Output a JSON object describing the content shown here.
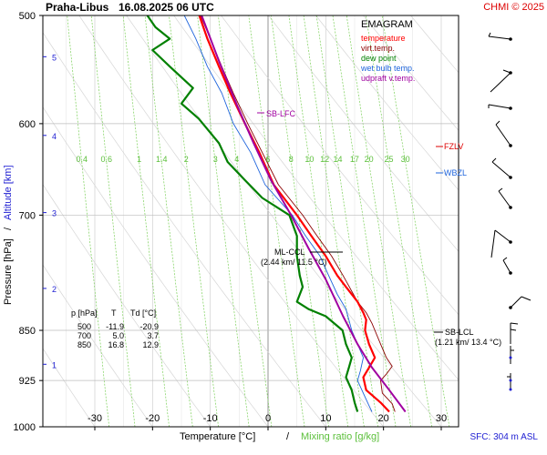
{
  "header": {
    "station": "Praha-Libus",
    "datetime": "16.08.2025 06 UTC",
    "credit": "CHMI © 2025"
  },
  "legend": {
    "title": "EMAGRAM",
    "items": [
      {
        "label": "temperature",
        "color": "#ff0000"
      },
      {
        "label": "virt.temp.",
        "color": "#8b0000"
      },
      {
        "label": "dew point",
        "color": "#008000"
      },
      {
        "label": "wet bulb temp.",
        "color": "#1e64dc"
      },
      {
        "label": "udpraft v.temp.",
        "color": "#a000a0"
      }
    ]
  },
  "axes": {
    "xlabel_temp": "Temperature [°C]",
    "xlabel_sep": "/",
    "xlabel_mix": "Mixing ratio [g/kg]",
    "ylabel_pressure": "Pressure [hPa]",
    "ylabel_sep": "/",
    "ylabel_alt": "Altitude [km]",
    "x_ticks": [
      "-30",
      "-20",
      "-10",
      "0",
      "10",
      "20",
      "30"
    ],
    "p_ticks": [
      "500",
      "600",
      "700",
      "850",
      "925",
      "1000"
    ],
    "alt_ticks": [
      "1",
      "2",
      "3",
      "4",
      "5"
    ],
    "mix_ticks": [
      "0.4",
      "0.6",
      "1",
      "1.4",
      "2",
      "3",
      "4",
      "6",
      "8",
      "10",
      "12",
      "14",
      "17",
      "20",
      "25",
      "30"
    ]
  },
  "annotations": {
    "sb_lfc": "SB-LFC",
    "ml_ccl": "ML-CCL",
    "ml_ccl_detail": "(2.44 km/ 11.5 °C)",
    "sb_lcl": "SB-LCL",
    "sb_lcl_detail": "(1.21 km/ 13.4 °C)",
    "fzlv": "FZLV",
    "wbzl": "WBZL"
  },
  "table": {
    "headers": [
      "p [hPa]",
      "T",
      "Td [°C]"
    ],
    "rows": [
      [
        "500",
        "-11.9",
        "-20.9"
      ],
      [
        "700",
        "5.0",
        "3.7"
      ],
      [
        "850",
        "16.8",
        "12.9"
      ]
    ]
  },
  "footer": {
    "sfc": "SFC: 304 m ASL"
  },
  "colors": {
    "temperature": "#ff0000",
    "virt_temp": "#8b0000",
    "dew_point": "#008000",
    "wet_bulb": "#1e64dc",
    "parcel": "#a000a0",
    "axis_blue": "#1e1ed2",
    "mix_green": "#7cd05a"
  },
  "chart_data": {
    "type": "line",
    "title": "EMAGRAM",
    "xlabel": "Temperature [°C] / Mixing ratio [g/kg]",
    "ylabel": "Pressure [hPa] / Altitude [km]",
    "xlim": [
      -39,
      33
    ],
    "ylim": [
      1000,
      500
    ],
    "y_scale": "log",
    "grid": true,
    "legend_position": "top-right",
    "series": [
      {
        "name": "temperature",
        "color": "#ff0000",
        "points": [
          [
            -11.9,
            500
          ],
          [
            -10.5,
            520
          ],
          [
            -8.5,
            545
          ],
          [
            -6.5,
            570
          ],
          [
            -4,
            600
          ],
          [
            -1.5,
            630
          ],
          [
            1,
            665
          ],
          [
            5,
            700
          ],
          [
            7.5,
            725
          ],
          [
            10,
            750
          ],
          [
            12,
            775
          ],
          [
            13.5,
            790
          ],
          [
            15.5,
            810
          ],
          [
            16.5,
            825
          ],
          [
            17,
            835
          ],
          [
            16.8,
            850
          ],
          [
            17.5,
            870
          ],
          [
            18.5,
            890
          ],
          [
            17.5,
            905
          ],
          [
            16.5,
            920
          ],
          [
            17,
            940
          ],
          [
            19.5,
            960
          ],
          [
            21,
            975
          ]
        ]
      },
      {
        "name": "virt.temp.",
        "color": "#8b0000",
        "points": [
          [
            -11.7,
            500
          ],
          [
            -10,
            520
          ],
          [
            -8,
            545
          ],
          [
            -6,
            570
          ],
          [
            -3.5,
            600
          ],
          [
            -1,
            630
          ],
          [
            1.8,
            665
          ],
          [
            6,
            700
          ],
          [
            8.5,
            725
          ],
          [
            11,
            750
          ],
          [
            13,
            775
          ],
          [
            15.5,
            810
          ],
          [
            17,
            825
          ],
          [
            18,
            840
          ],
          [
            18.5,
            850
          ],
          [
            19.5,
            870
          ],
          [
            20.5,
            890
          ],
          [
            21.5,
            903
          ],
          [
            20.5,
            915
          ],
          [
            19.5,
            925
          ],
          [
            19.8,
            945
          ],
          [
            21.5,
            962
          ],
          [
            22,
            975
          ]
        ]
      },
      {
        "name": "dew point",
        "color": "#008000",
        "points": [
          [
            -20.9,
            500
          ],
          [
            -19.5,
            510
          ],
          [
            -17,
            520
          ],
          [
            -20,
            530
          ],
          [
            -17,
            545
          ],
          [
            -13,
            565
          ],
          [
            -15,
            580
          ],
          [
            -12,
            595
          ],
          [
            -8.5,
            620
          ],
          [
            -7,
            640
          ],
          [
            -4,
            660
          ],
          [
            -1,
            680
          ],
          [
            3.7,
            700
          ],
          [
            5,
            725
          ],
          [
            5,
            750
          ],
          [
            5.5,
            775
          ],
          [
            6,
            790
          ],
          [
            5,
            810
          ],
          [
            7,
            820
          ],
          [
            10,
            830
          ],
          [
            12.9,
            850
          ],
          [
            13.5,
            870
          ],
          [
            14.5,
            890
          ],
          [
            14,
            905
          ],
          [
            13.5,
            920
          ],
          [
            14.5,
            940
          ],
          [
            15,
            960
          ],
          [
            15.5,
            975
          ]
        ]
      },
      {
        "name": "wet bulb temp.",
        "color": "#1e64dc",
        "points": [
          [
            -14.5,
            500
          ],
          [
            -12.5,
            520
          ],
          [
            -10.5,
            545
          ],
          [
            -8,
            570
          ],
          [
            -6,
            600
          ],
          [
            -3,
            630
          ],
          [
            -0.5,
            665
          ],
          [
            4.2,
            700
          ],
          [
            6.5,
            725
          ],
          [
            9,
            750
          ],
          [
            10.5,
            775
          ],
          [
            12,
            800
          ],
          [
            13.5,
            820
          ],
          [
            14.5,
            850
          ],
          [
            15.5,
            870
          ],
          [
            16.5,
            890
          ],
          [
            16,
            910
          ],
          [
            15.5,
            925
          ],
          [
            16.5,
            945
          ],
          [
            17.5,
            965
          ],
          [
            18,
            975
          ]
        ]
      },
      {
        "name": "udpraft v.temp.",
        "color": "#a000a0",
        "points": [
          [
            -11.5,
            500
          ],
          [
            -8.5,
            540
          ],
          [
            -5.5,
            580
          ],
          [
            -2.5,
            620
          ],
          [
            0.5,
            660
          ],
          [
            4,
            700
          ],
          [
            7,
            740
          ],
          [
            10,
            780
          ],
          [
            13,
            830
          ],
          [
            15.5,
            870
          ],
          [
            18,
            905
          ],
          [
            21,
            940
          ],
          [
            23.8,
            975
          ]
        ]
      }
    ]
  }
}
